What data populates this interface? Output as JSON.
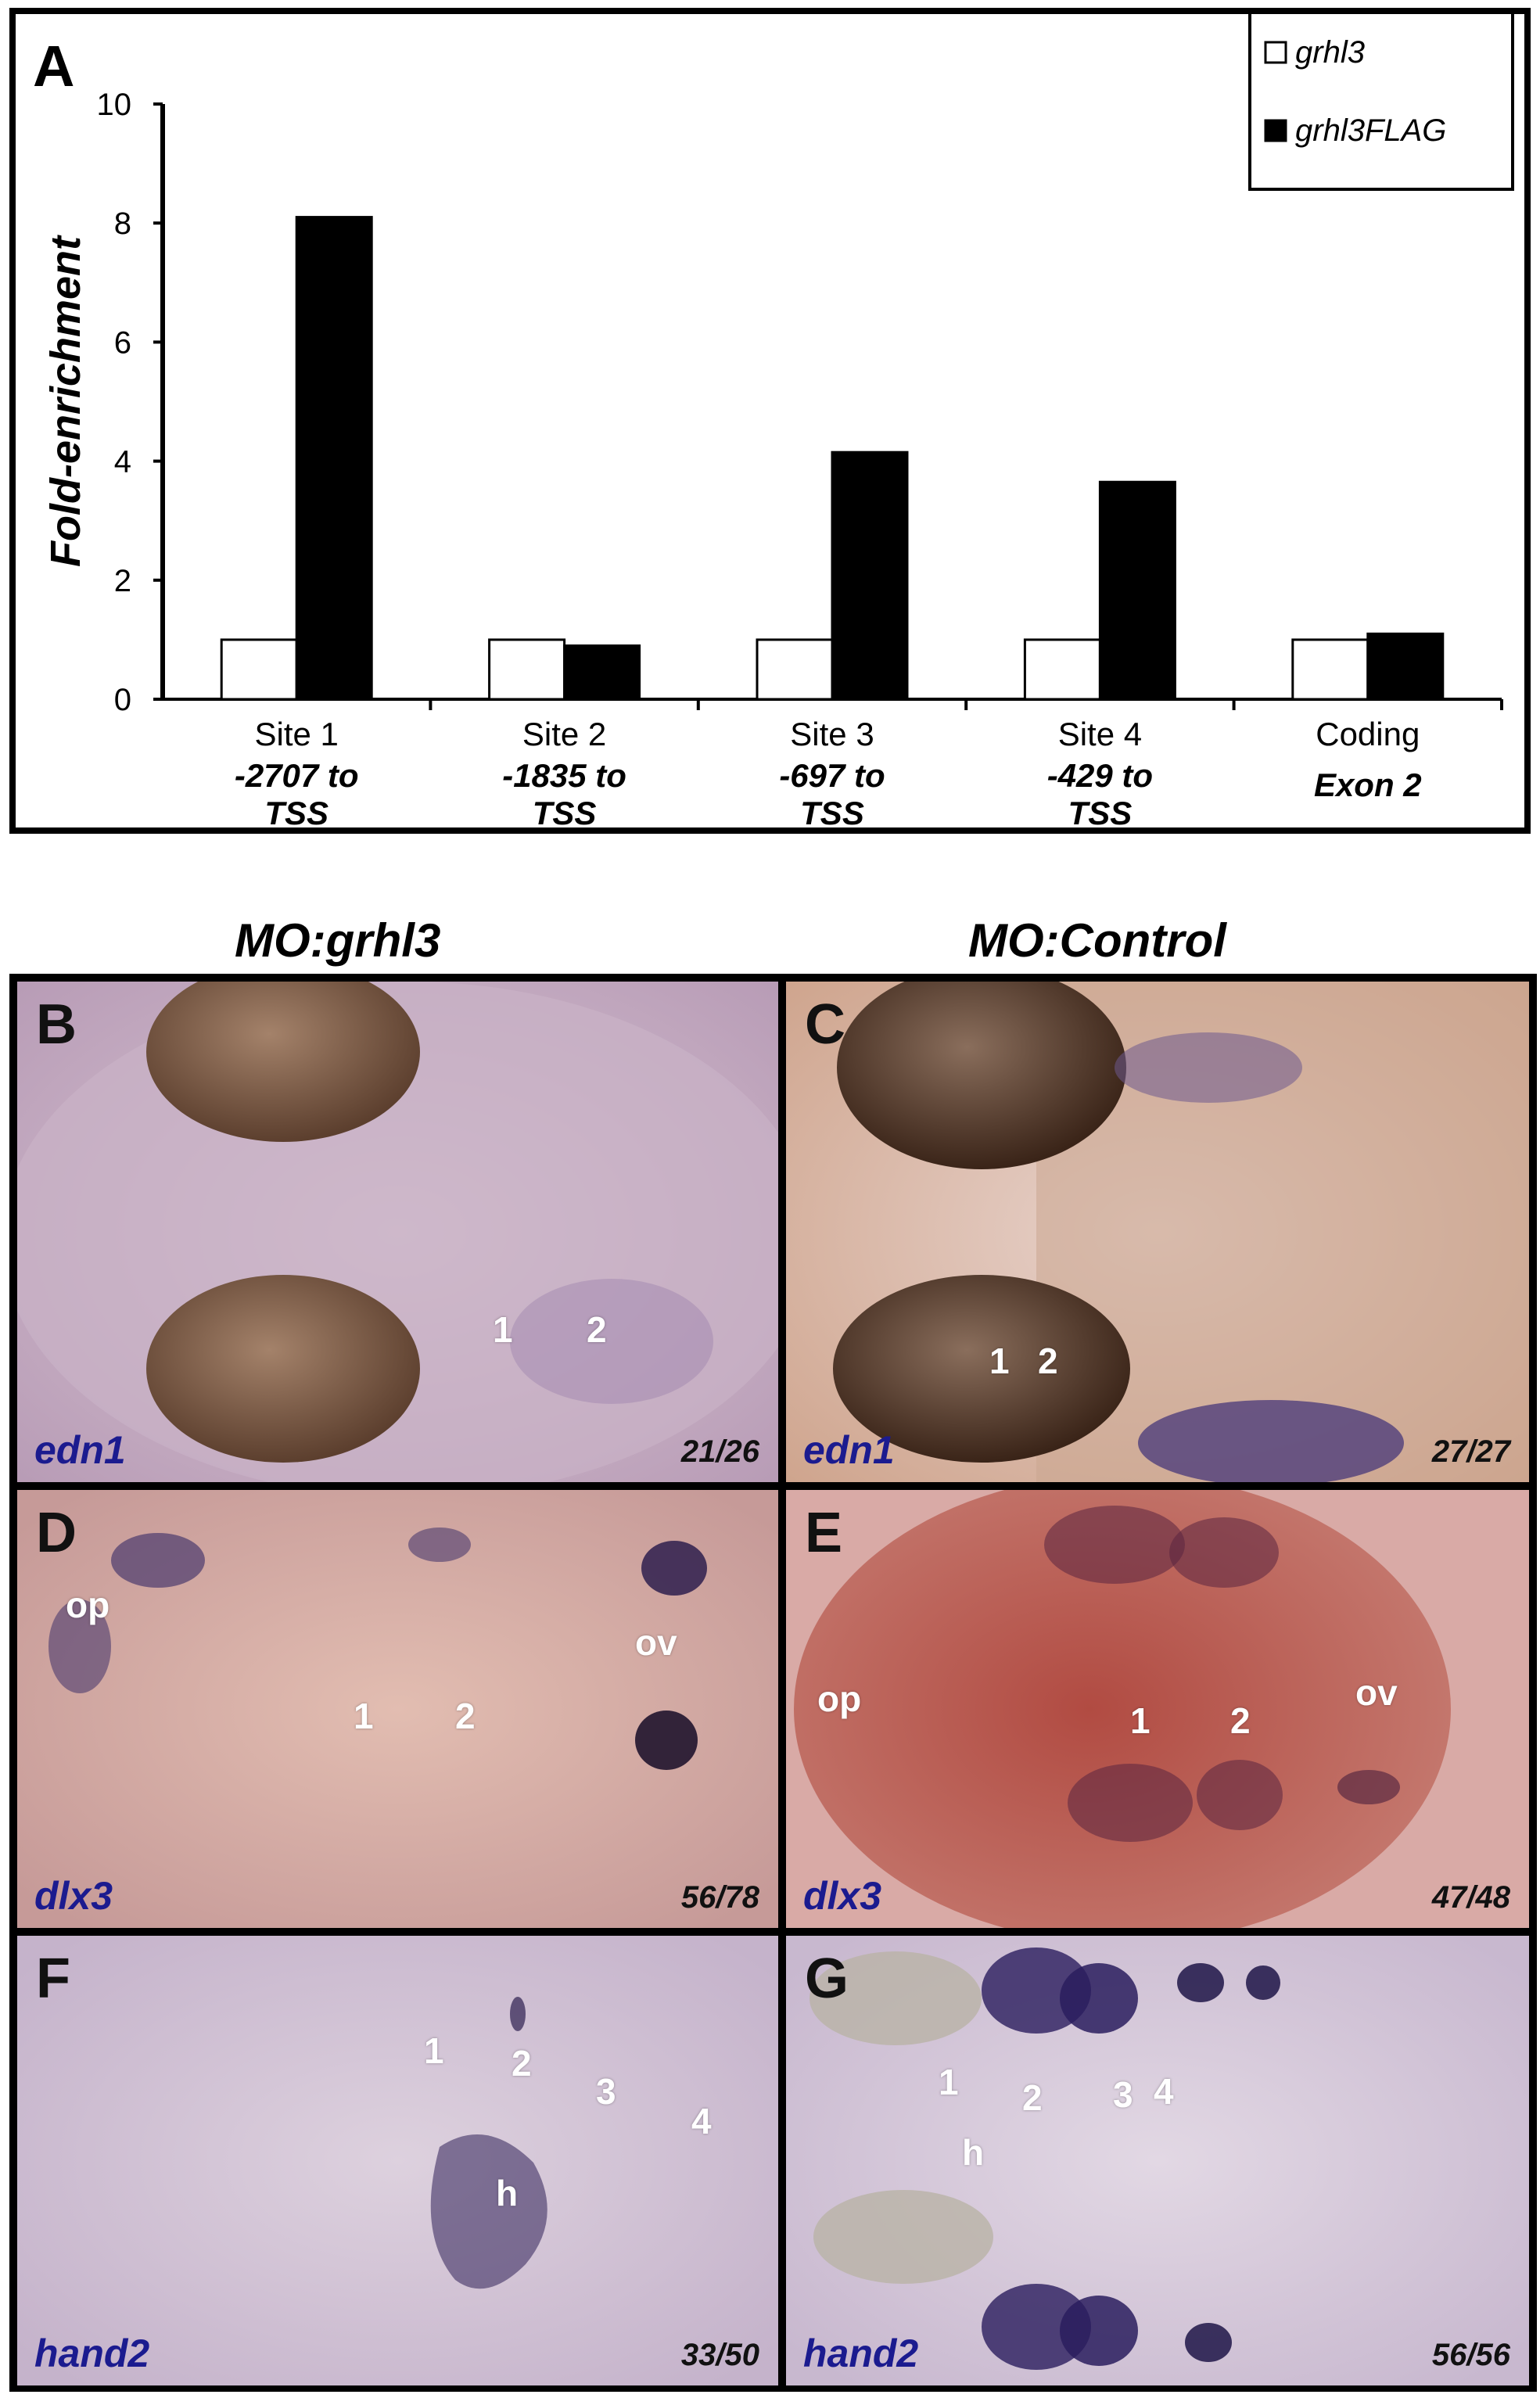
{
  "panelA": {
    "letter": "A",
    "legend": [
      {
        "name": "grhl3",
        "color": "#ffffff"
      },
      {
        "name": "grhl3FLAG",
        "color": "#000000"
      }
    ]
  },
  "chart_data": {
    "type": "bar",
    "ylabel": "Fold-enrichment",
    "ylim": [
      0,
      10
    ],
    "yticks": [
      "0",
      "2",
      "4",
      "6",
      "8",
      "10"
    ],
    "categories": [
      {
        "line1": "Site 1",
        "line2": "-2707 to",
        "line3": "TSS"
      },
      {
        "line1": "Site 2",
        "line2": "-1835 to",
        "line3": "TSS"
      },
      {
        "line1": "Site 3",
        "line2": "-697 to",
        "line3": "TSS"
      },
      {
        "line1": "Site 4",
        "line2": "-429 to",
        "line3": "TSS"
      },
      {
        "line1": "Coding",
        "line2": "Exon 2",
        "line3": ""
      }
    ],
    "series": [
      {
        "name": "grhl3",
        "values": [
          1.0,
          1.0,
          1.0,
          1.0,
          1.0
        ]
      },
      {
        "name": "grhl3FLAG",
        "values": [
          8.1,
          0.9,
          4.15,
          3.65,
          1.1
        ]
      }
    ],
    "grid": false,
    "legend_position": "top-right"
  },
  "columns": {
    "left": "MO:grhl3",
    "right": "MO:Control"
  },
  "panels": {
    "B": {
      "letter": "B",
      "gene": "edn1",
      "count": "21/26",
      "labels": [
        "1",
        "2"
      ]
    },
    "C": {
      "letter": "C",
      "gene": "edn1",
      "count": "27/27",
      "labels": [
        "1",
        "2"
      ]
    },
    "D": {
      "letter": "D",
      "gene": "dlx3",
      "count": "56/78",
      "labels": [
        "op",
        "ov",
        "1",
        "2"
      ]
    },
    "E": {
      "letter": "E",
      "gene": "dlx3",
      "count": "47/48",
      "labels": [
        "op",
        "ov",
        "1",
        "2"
      ]
    },
    "F": {
      "letter": "F",
      "gene": "hand2",
      "count": "33/50",
      "labels": [
        "1",
        "2",
        "3",
        "4",
        "h"
      ]
    },
    "G": {
      "letter": "G",
      "gene": "hand2",
      "count": "56/56",
      "labels": [
        "1",
        "2",
        "3",
        "4",
        "h"
      ]
    }
  }
}
